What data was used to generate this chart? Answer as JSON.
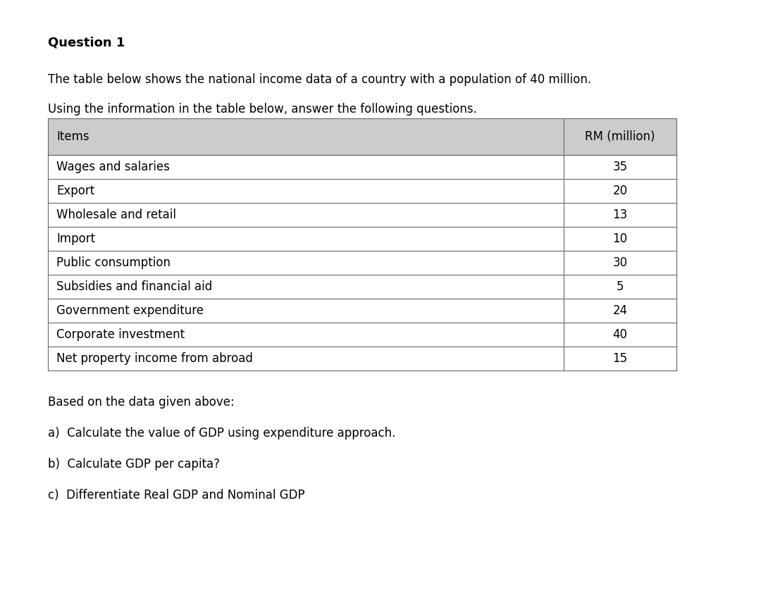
{
  "title": "Question 1",
  "intro_line1": "The table below shows the national income data of a country with a population of 40 million.",
  "intro_line2": "Using the information in the table below, answer the following questions.",
  "table_header": [
    "Items",
    "RM (million)"
  ],
  "table_rows": [
    [
      "Wages and salaries",
      "35"
    ],
    [
      "Export",
      "20"
    ],
    [
      "Wholesale and retail",
      "13"
    ],
    [
      "Import",
      "10"
    ],
    [
      "Public consumption",
      "30"
    ],
    [
      "Subsidies and financial aid",
      "5"
    ],
    [
      "Government expenditure",
      "24"
    ],
    [
      "Corporate investment",
      "40"
    ],
    [
      "Net property income from abroad",
      "15"
    ]
  ],
  "footer_intro": "Based on the data given above:",
  "questions": [
    "a)  Calculate the value of GDP using expenditure approach.",
    "b)  Calculate GDP per capita?",
    "c)  Differentiate Real GDP and Nominal GDP"
  ],
  "header_bg": "#cccccc",
  "border_color": "#666666",
  "text_color": "#000000",
  "bg_color": "#ffffff",
  "title_fontsize": 13,
  "body_fontsize": 12,
  "table_fontsize": 12
}
